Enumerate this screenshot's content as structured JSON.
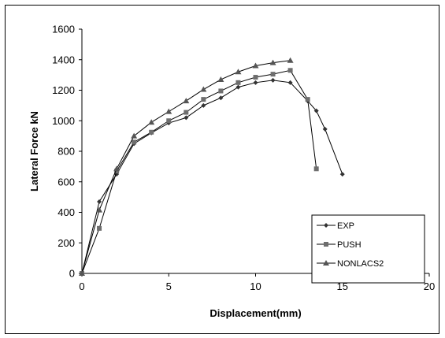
{
  "chart_data": {
    "type": "line",
    "title": "",
    "xlabel": "Displacement(mm)",
    "ylabel": "Lateral Force kN",
    "xlim": [
      0,
      20
    ],
    "ylim": [
      0,
      1600
    ],
    "xticks": [
      0,
      5,
      10,
      15,
      20
    ],
    "yticks": [
      0,
      200,
      400,
      600,
      800,
      1000,
      1200,
      1400,
      1600
    ],
    "grid": false,
    "legend_position": "bottom-right",
    "series": [
      {
        "name": "EXP",
        "marker": "diamond",
        "color": "#000000",
        "x": [
          0,
          1,
          2,
          3,
          4,
          5,
          6,
          7,
          8,
          9,
          10,
          11,
          12,
          13,
          13.5,
          14,
          15
        ],
        "y": [
          0,
          470,
          650,
          850,
          920,
          985,
          1020,
          1100,
          1150,
          1220,
          1250,
          1265,
          1250,
          1130,
          1065,
          945,
          650
        ]
      },
      {
        "name": "PUSH",
        "marker": "square",
        "color": "#000000",
        "x": [
          0,
          1,
          2,
          3,
          4,
          5,
          6,
          7,
          8,
          9,
          10,
          11,
          12,
          13,
          13.5
        ],
        "y": [
          0,
          295,
          670,
          860,
          925,
          1000,
          1055,
          1140,
          1195,
          1250,
          1285,
          1305,
          1330,
          1140,
          685
        ]
      },
      {
        "name": "NONLACS2",
        "marker": "triangle",
        "color": "#000000",
        "x": [
          0,
          1,
          2,
          3,
          4,
          5,
          6,
          7,
          8,
          9,
          10,
          11,
          12
        ],
        "y": [
          0,
          415,
          685,
          900,
          990,
          1060,
          1130,
          1205,
          1270,
          1320,
          1360,
          1380,
          1395
        ]
      }
    ]
  }
}
